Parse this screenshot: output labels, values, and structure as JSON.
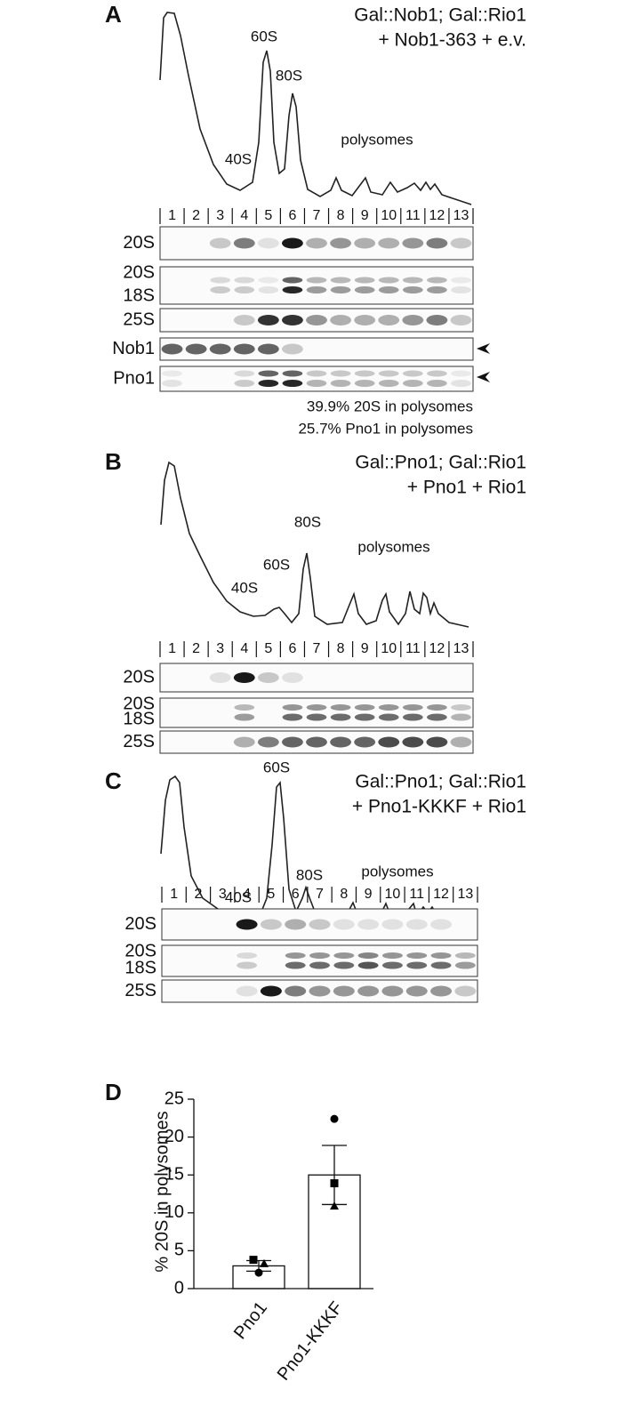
{
  "panels": [
    {
      "label": "A",
      "genotype": [
        "Gal::Nob1; Gal::Rio1",
        "+ Nob1-363 + e.v."
      ],
      "peaks": [
        "40S",
        "60S",
        "80S",
        "polysomes"
      ],
      "fractions": [
        "1",
        "2",
        "3",
        "4",
        "5",
        "6",
        "7",
        "8",
        "9",
        "10",
        "11",
        "12",
        "13"
      ],
      "blots": [
        [
          "20S"
        ],
        [
          "20S",
          "18S"
        ],
        [
          "25S"
        ],
        [
          "Nob1"
        ],
        [
          "Pno1"
        ]
      ],
      "notes": [
        "39.9% 20S in polysomes",
        "25.7% Pno1 in polysomes"
      ]
    },
    {
      "label": "B",
      "genotype": [
        "Gal::Pno1; Gal::Rio1",
        "+ Pno1 + Rio1"
      ],
      "peaks": [
        "40S",
        "60S",
        "80S",
        "polysomes"
      ],
      "fractions": [
        "1",
        "2",
        "3",
        "4",
        "5",
        "6",
        "7",
        "8",
        "9",
        "10",
        "11",
        "12",
        "13"
      ],
      "blots": [
        [
          "20S"
        ],
        [
          "20S",
          "18S"
        ],
        [
          "25S"
        ]
      ]
    },
    {
      "label": "C",
      "genotype": [
        "Gal::Pno1; Gal::Rio1",
        "+ Pno1-KKKF + Rio1"
      ],
      "peaks": [
        "40S",
        "60S",
        "80S",
        "polysomes"
      ],
      "fractions": [
        "1",
        "2",
        "3",
        "4",
        "5",
        "6",
        "7",
        "8",
        "9",
        "10",
        "11",
        "12",
        "13"
      ],
      "blots": [
        [
          "20S"
        ],
        [
          "20S",
          "18S"
        ],
        [
          "25S"
        ]
      ]
    }
  ],
  "chart_data": {
    "type": "bar",
    "label": "D",
    "ylabel": "% 20S in polysomes",
    "categories": [
      "Pno1",
      "Pno1-KKKF"
    ],
    "values": [
      3.0,
      15.0
    ],
    "errors": [
      0.7,
      3.9
    ],
    "color": "#ffffff",
    "points": [
      {
        "marker": "circle",
        "values": [
          2.1,
          22.4
        ]
      },
      {
        "marker": "square",
        "values": [
          3.8,
          13.9
        ]
      },
      {
        "marker": "triangle",
        "values": [
          3.3,
          10.9
        ]
      }
    ],
    "ylim": [
      0,
      25
    ],
    "yticks": [
      0,
      5,
      10,
      15,
      20,
      25
    ]
  }
}
